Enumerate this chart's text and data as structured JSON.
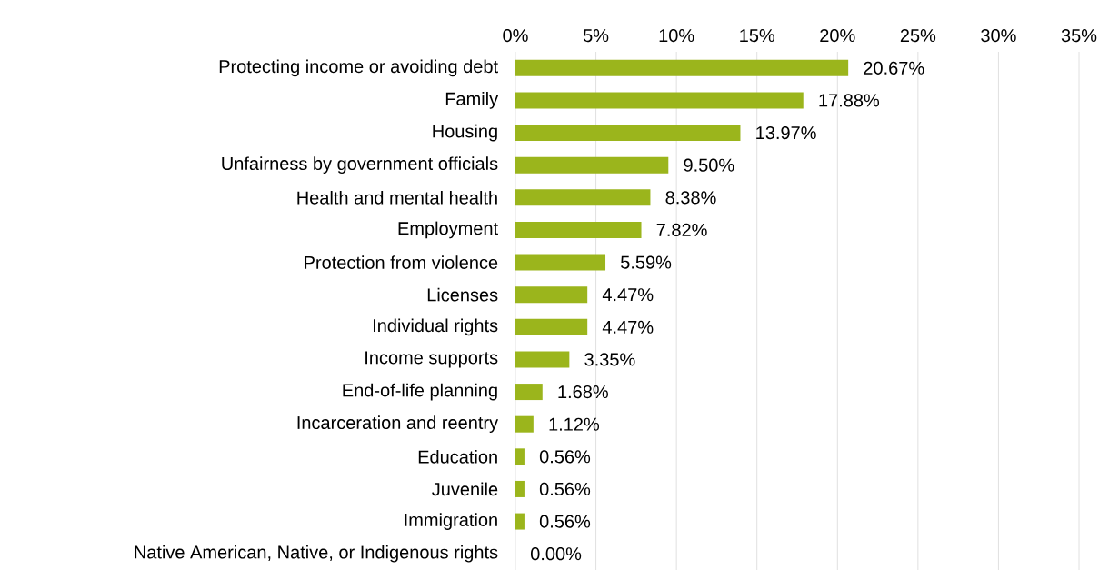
{
  "chart_data": {
    "type": "bar",
    "orientation": "horizontal",
    "categories": [
      "Protecting income or avoiding debt",
      "Family",
      "Housing",
      "Unfairness by government officials",
      "Health and mental health",
      "Employment",
      "Protection from violence",
      "Licenses",
      "Individual rights",
      "Income supports",
      "End-of-life planning",
      "Incarceration and reentry",
      "Education",
      "Juvenile",
      "Immigration",
      "Native American, Native, or Indigenous rights"
    ],
    "values": [
      20.67,
      17.88,
      13.97,
      9.5,
      8.38,
      7.82,
      5.59,
      4.47,
      4.47,
      3.35,
      1.68,
      1.12,
      0.56,
      0.56,
      0.56,
      0.0
    ],
    "value_labels": [
      "20.67%",
      "17.88%",
      "13.97%",
      "9.50%",
      "8.38%",
      "7.82%",
      "5.59%",
      "4.47%",
      "4.47%",
      "3.35%",
      "1.68%",
      "1.12%",
      "0.56%",
      "0.56%",
      "0.56%",
      "0.00%"
    ],
    "color": "#9bb51c",
    "xlim": [
      0,
      35
    ],
    "xticks": [
      {
        "value": 0,
        "label": "0%"
      },
      {
        "value": 5,
        "label": "5%"
      },
      {
        "value": 10,
        "label": "10%"
      },
      {
        "value": 15,
        "label": "15%"
      },
      {
        "value": 20,
        "label": "20%"
      },
      {
        "value": 25,
        "label": "25%"
      },
      {
        "value": 30,
        "label": "30%"
      },
      {
        "value": 35,
        "label": "35%"
      }
    ],
    "grid": "x"
  }
}
